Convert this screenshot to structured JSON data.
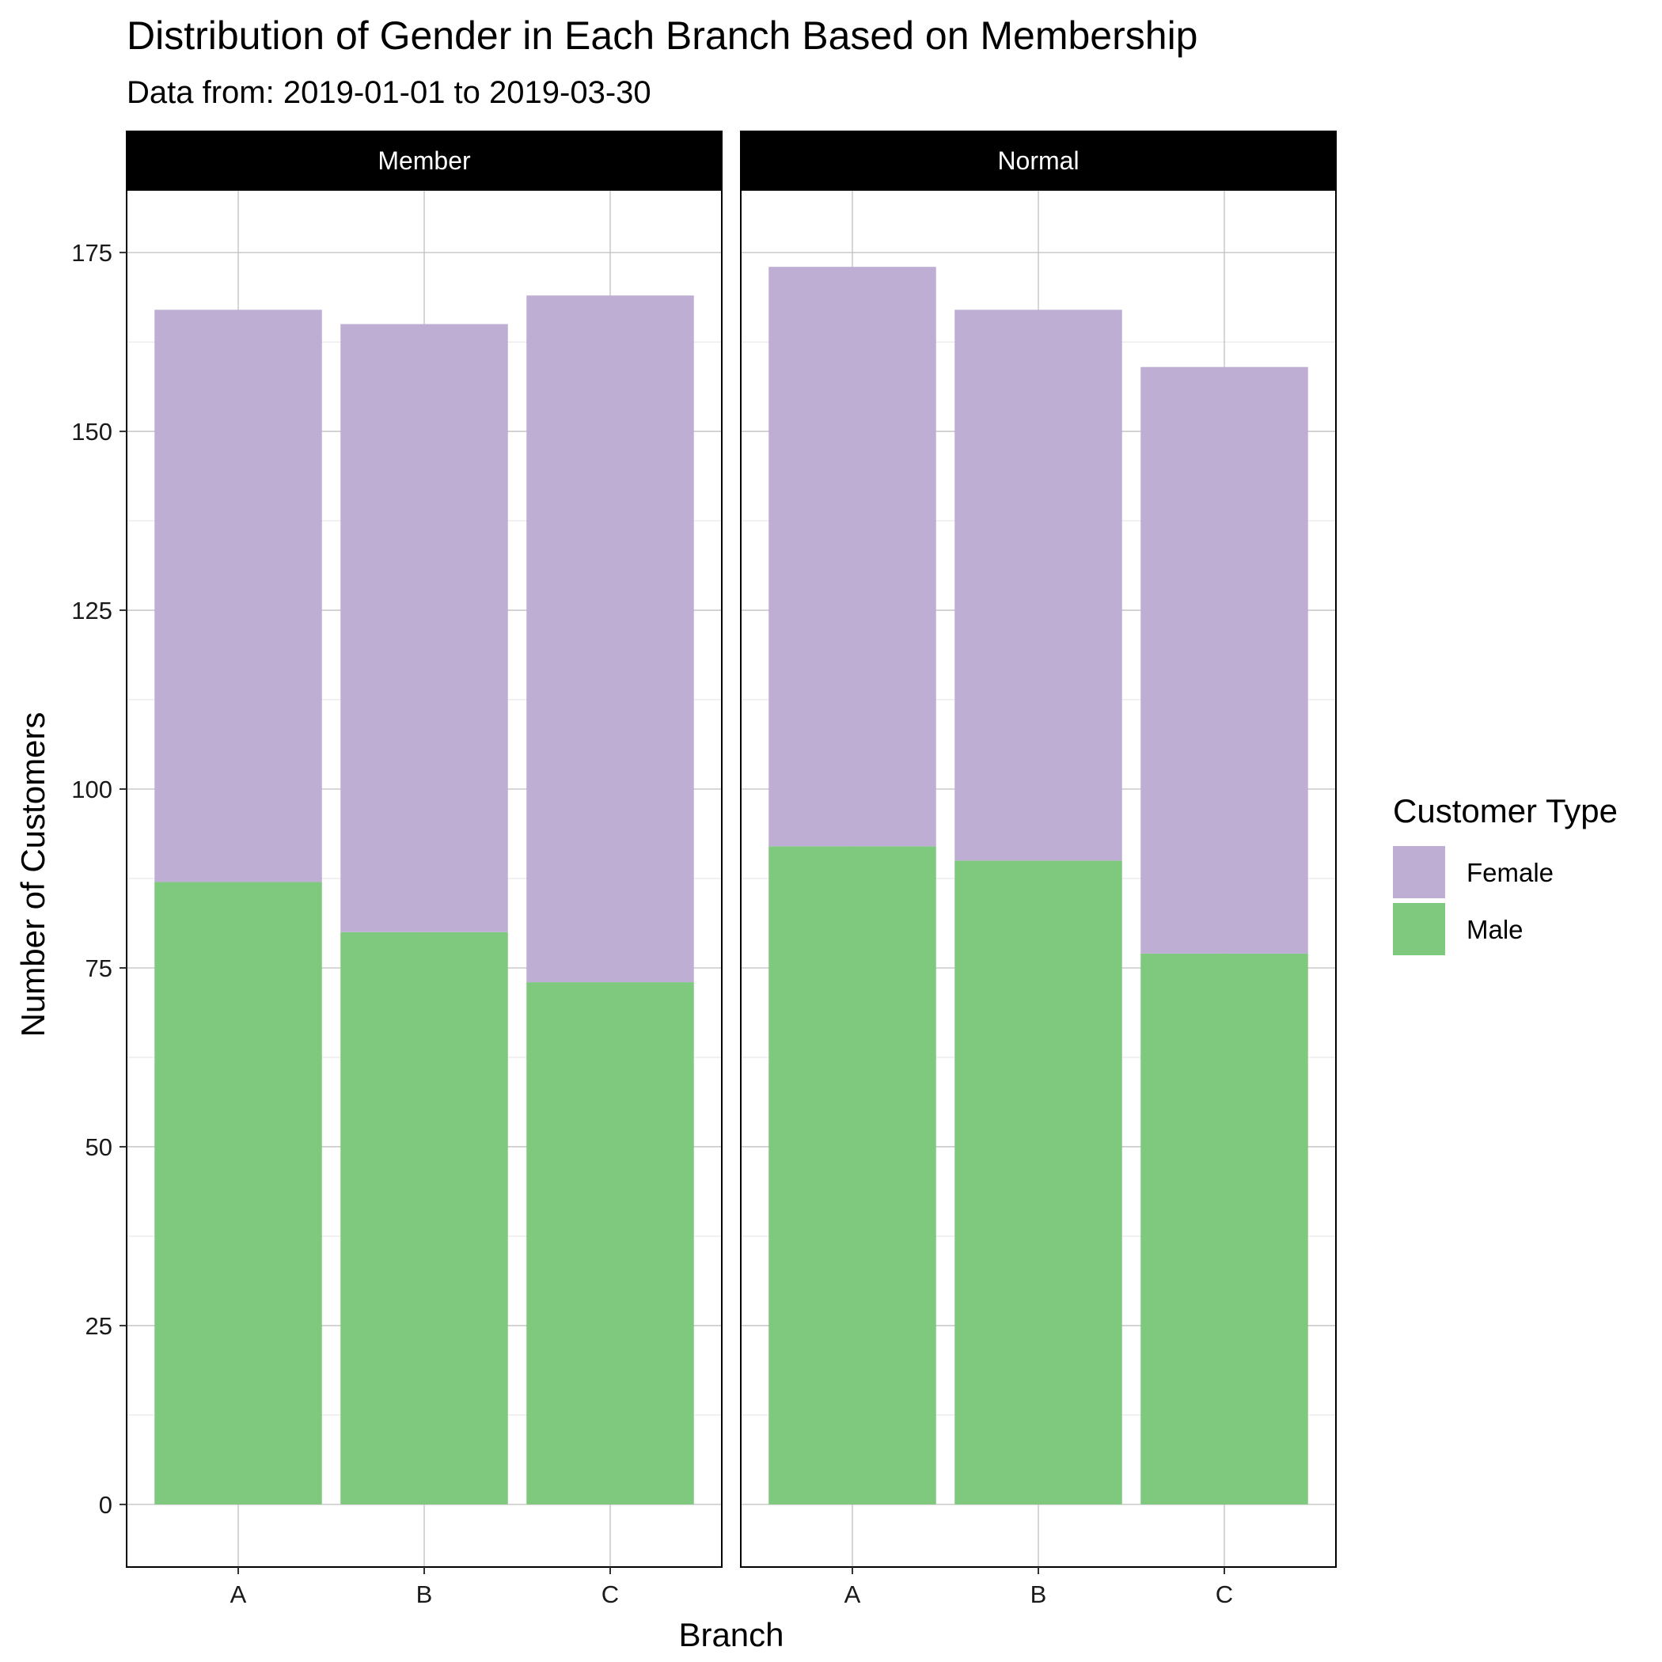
{
  "chart_data": {
    "type": "bar",
    "stacked": true,
    "title": "Distribution of Gender in Each Branch Based on Membership",
    "subtitle": "Data from: 2019-01-01 to 2019-03-30",
    "xlabel": "Branch",
    "ylabel": "Number of Customers",
    "categories": [
      "A",
      "B",
      "C"
    ],
    "ylim": [
      -8.75,
      183.75
    ],
    "yticks": [
      0,
      25,
      50,
      75,
      100,
      125,
      150,
      175
    ],
    "grid": true,
    "legend": {
      "title": "Customer Type",
      "position": "right",
      "entries": [
        {
          "label": "Female",
          "color": "#BEAED4"
        },
        {
          "label": "Male",
          "color": "#7FC97F"
        }
      ]
    },
    "panels": [
      {
        "name": "Member",
        "series": [
          {
            "name": "Male",
            "values": [
              87,
              80,
              73
            ]
          },
          {
            "name": "Female",
            "values": [
              80,
              85,
              96
            ]
          }
        ]
      },
      {
        "name": "Normal",
        "series": [
          {
            "name": "Male",
            "values": [
              92,
              90,
              77
            ]
          },
          {
            "name": "Female",
            "values": [
              81,
              77,
              82
            ]
          }
        ]
      }
    ]
  },
  "colors": {
    "female": "#BEAED4",
    "male": "#7FC97F",
    "strip": "#000000",
    "grid_major": "#bfbfbf",
    "grid_minor": "#e3e3e3"
  }
}
